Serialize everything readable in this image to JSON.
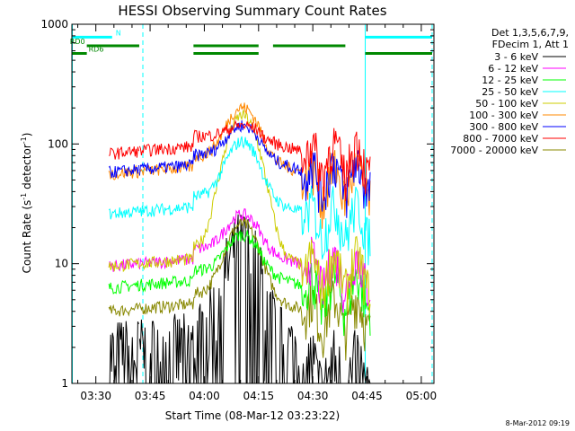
{
  "chart_data": {
    "type": "line",
    "title": "HESSI Observing Summary Count Rates",
    "xlabel": "Start Time (08-Mar-12 03:23:22)",
    "ylabel_main": "Count Rate (s",
    "ylabel_sup1": "-1",
    "ylabel_mid": " detector",
    "ylabel_sup2": "-1",
    "ylabel_end": ")",
    "y_scale": "log",
    "ylim": [
      1,
      1000
    ],
    "x_tick_labels": [
      "03:30",
      "03:45",
      "04:00",
      "04:15",
      "04:30",
      "04:45",
      "05:00"
    ],
    "x_tick_minutes": [
      30,
      45,
      60,
      75,
      90,
      105,
      120
    ],
    "xlim_minutes": [
      23.37,
      123.5
    ],
    "y_tick_labels": [
      "1",
      "10",
      "100",
      "1000"
    ],
    "y_tick_values": [
      1,
      10,
      100,
      1000
    ],
    "legend_header": [
      "Det 1,3,5,6,7,9,",
      "FDecim 1, Att 1"
    ],
    "legend_placement": "right",
    "series": [
      {
        "name": "3 - 6 keV",
        "color": "#000000",
        "base": 1.8,
        "peak": 14,
        "gap_level": 1.2
      },
      {
        "name": "6 - 12 keV",
        "color": "#ff00ff",
        "base": 9.5,
        "peak": 22,
        "gap_level": 9
      },
      {
        "name": "12 - 25 keV",
        "color": "#00ff00",
        "base": 6.3,
        "peak": 15,
        "gap_level": 6
      },
      {
        "name": "25 - 50 keV",
        "color": "#00ffff",
        "base": 26,
        "peak": 95,
        "gap_level": 24
      },
      {
        "name": "50 - 100 keV",
        "color": "#cccc00",
        "base": 9.5,
        "peak": 170,
        "gap_level": 9
      },
      {
        "name": "100 - 300 keV",
        "color": "#ff8800",
        "base": 56,
        "peak": 180,
        "gap_level": 50
      },
      {
        "name": "300 - 800 keV",
        "color": "#0000ff",
        "base": 58,
        "peak": 120,
        "gap_level": 55
      },
      {
        "name": "800 - 7000 keV",
        "color": "#ff0000",
        "base": 83,
        "peak": 110,
        "gap_level": 80
      },
      {
        "name": "7000 - 20000 keV",
        "color": "#888800",
        "base": 4,
        "peak": 20,
        "gap_level": 4
      }
    ],
    "flags": [
      {
        "label": "N",
        "color": "#00ffff",
        "y_value": 780,
        "segments": [
          [
            23.5,
            34.5
          ],
          [
            104.5,
            123
          ]
        ]
      },
      {
        "label": "RD0",
        "color": "#008800",
        "y_value": 660,
        "segments": [
          [
            27.5,
            42
          ],
          [
            57,
            75
          ],
          [
            79,
            99
          ]
        ]
      },
      {
        "label": "RD6",
        "color": "#008800",
        "y_value": 570,
        "segments": [
          [
            23.5,
            27.5
          ],
          [
            57,
            75
          ],
          [
            104.5,
            123
          ]
        ]
      }
    ],
    "vertical_lines": [
      {
        "minute": 23.5,
        "style": "solid",
        "color": "#00ffff"
      },
      {
        "minute": 43,
        "style": "dashed",
        "color": "#00ffff"
      },
      {
        "minute": 104.5,
        "style": "solid",
        "color": "#00ffff"
      },
      {
        "minute": 123,
        "style": "dashed",
        "color": "#00ffff"
      }
    ],
    "date_stamp": "8-Mar-2012 09:19",
    "grid": false
  }
}
